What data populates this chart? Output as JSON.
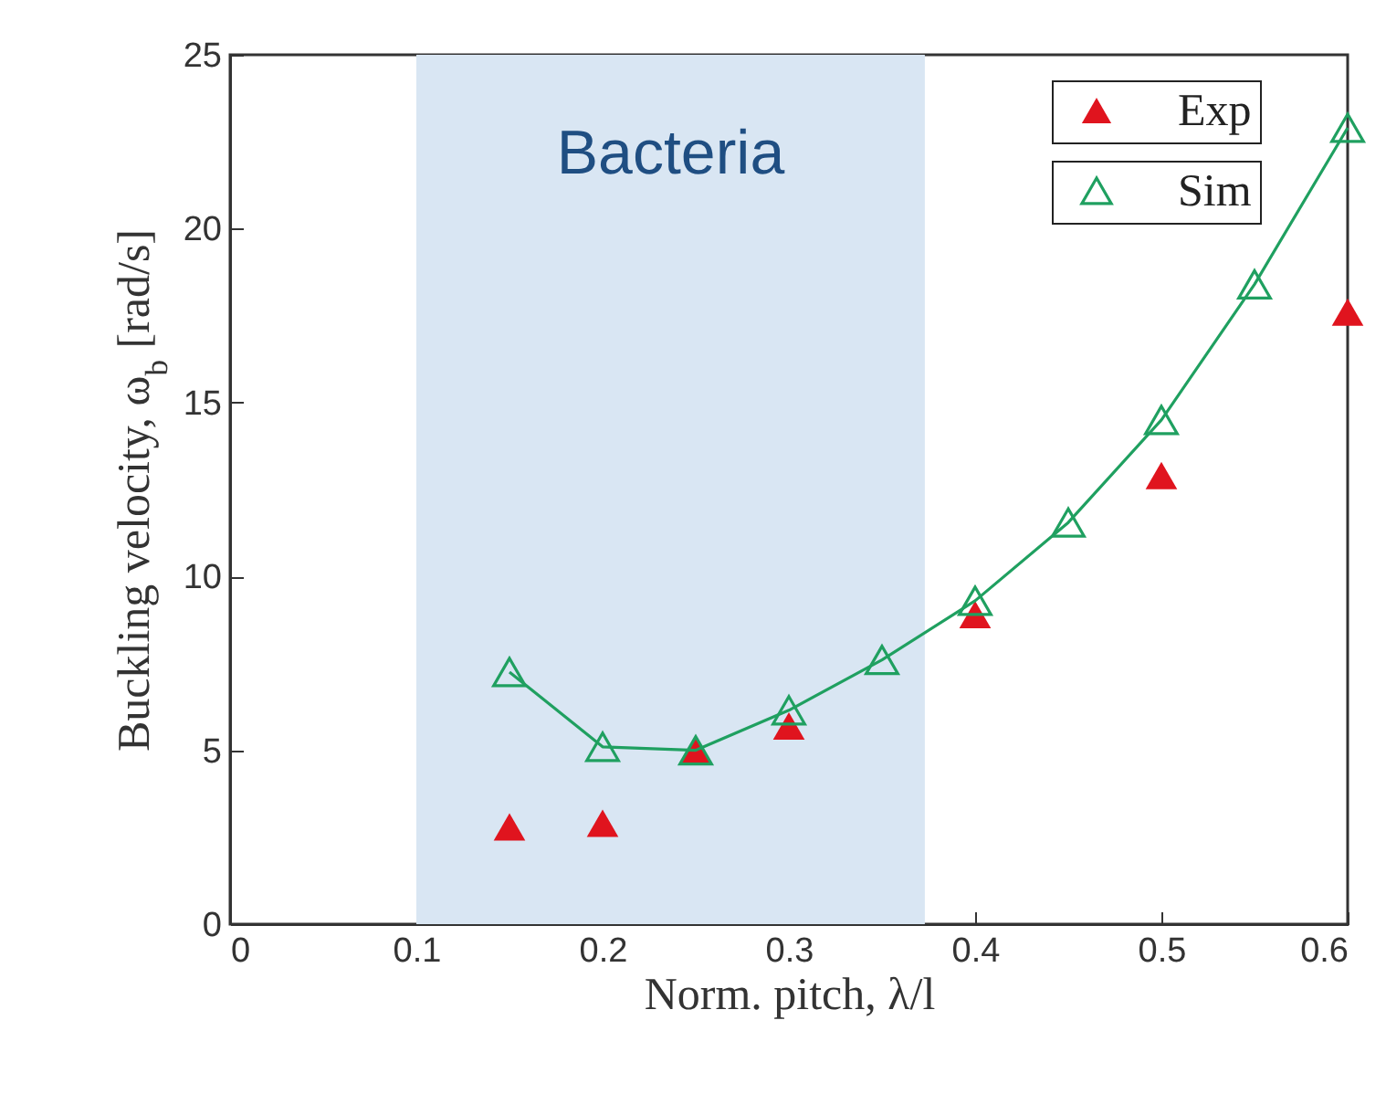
{
  "chart_data": {
    "type": "scatter",
    "xlabel": "Norm. pitch, λ/l",
    "ylabel": "Buckling velocity, ω$_{b}$ [rad/s]",
    "xlim": [
      0,
      0.6
    ],
    "xticks": [
      0,
      0.1,
      0.2,
      0.3,
      0.4,
      0.5,
      0.6
    ],
    "ylim": [
      0,
      25
    ],
    "yticks": [
      0,
      5,
      10,
      15,
      20,
      25
    ],
    "grid": false,
    "legend": "top right",
    "marker": "triangle",
    "bands": [
      {
        "axis": "x",
        "from": 0.1,
        "to": 0.373,
        "label": "Bacteria",
        "color": "#d9e6f3"
      }
    ],
    "series": [
      {
        "name": "Exp",
        "color": "#e0141e",
        "x": [
          0.15,
          0.2,
          0.25,
          0.3,
          0.4,
          0.5,
          0.6
        ],
        "values": [
          2.8,
          2.9,
          5.0,
          5.7,
          8.9,
          12.9,
          17.6
        ]
      },
      {
        "name": "Sim",
        "type": "line",
        "color": "#1fa060",
        "x": [
          0.15,
          0.2,
          0.25,
          0.3,
          0.35,
          0.4,
          0.45,
          0.5,
          0.55,
          0.6
        ],
        "values": [
          7.25,
          5.1,
          5.0,
          6.15,
          7.6,
          9.3,
          11.55,
          14.5,
          18.4,
          22.9
        ]
      }
    ]
  }
}
